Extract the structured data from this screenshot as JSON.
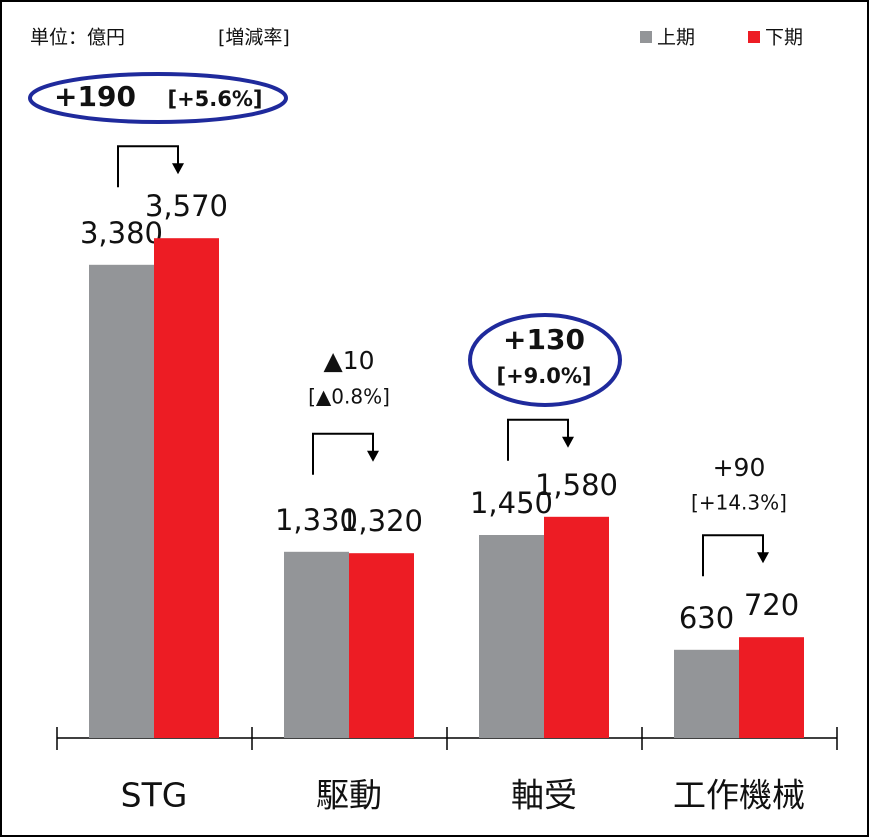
{
  "units": "単位：億円",
  "note": "[増減率]",
  "chart_data": {
    "type": "bar",
    "categories": [
      "STG",
      "駆動",
      "軸受",
      "工作機械"
    ],
    "series": [
      {
        "name": "上期",
        "color": "#939598",
        "values": [
          3380,
          1330,
          1450,
          630
        ],
        "value_labels": [
          "3,380",
          "1,330",
          "1,450",
          "630"
        ]
      },
      {
        "name": "下期",
        "color": "#ed1c24",
        "values": [
          3570,
          1320,
          1580,
          720
        ],
        "value_labels": [
          "3,570",
          "1,320",
          "1,580",
          "720"
        ]
      }
    ],
    "annotations": [
      {
        "change": "+190",
        "rate": "[+5.6%]",
        "highlight": true
      },
      {
        "change": "▲10",
        "rate": "[▲0.8%]",
        "highlight": false
      },
      {
        "change": "+130",
        "rate": "[+9.0%]",
        "highlight": true
      },
      {
        "change": "+90",
        "rate": "[+14.3%]",
        "highlight": false
      }
    ]
  }
}
